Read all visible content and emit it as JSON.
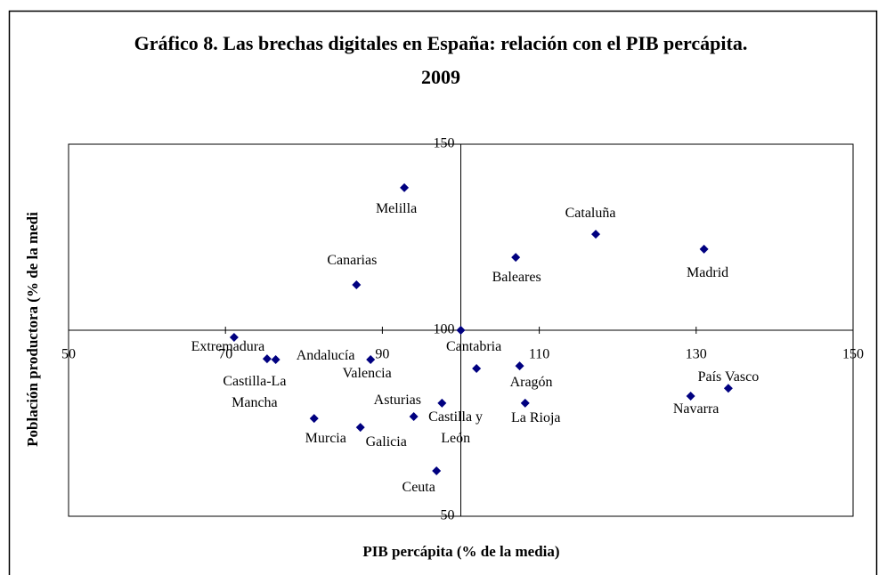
{
  "chart_data": {
    "type": "scatter",
    "title": "Gráfico 8. Las brechas digitales en España: relación con el PIB percápita. 2009",
    "x_label": "PIB percápita (% de la media)",
    "y_label": "Población productora (% de la medi",
    "categories": [
      "Melilla",
      "Cataluña",
      "Madrid",
      "Baleares",
      "Canarias",
      null,
      "Extremadura",
      "Castilla-La Mancha",
      "Andalucía",
      "Valencia",
      "Cantabria",
      "Aragón",
      "País Vasco",
      "Navarra",
      "Asturias",
      "La Rioja",
      "Murcia",
      "Castilla y León",
      "Galicia",
      "Ceuta"
    ],
    "x": [
      92.8,
      117.2,
      131.0,
      107.0,
      86.7,
      100,
      71.1,
      75.3,
      76.4,
      88.5,
      102.0,
      107.5,
      134.1,
      129.3,
      97.6,
      108.2,
      81.3,
      94.0,
      87.2,
      96.9
    ],
    "values": [
      138.3,
      125.8,
      121.8,
      119.6,
      112.2,
      100,
      98.1,
      92.3,
      92.1,
      92.1,
      89.7,
      90.4,
      84.4,
      82.3,
      80.4,
      80.4,
      76.3,
      76.8,
      73.9,
      62.2
    ],
    "color": "#000080",
    "xlim": [
      50,
      150
    ],
    "xticks": [
      50,
      70,
      90,
      110,
      130,
      150
    ],
    "ylim": [
      50,
      150
    ],
    "yticks": [
      50,
      100,
      150
    ]
  }
}
